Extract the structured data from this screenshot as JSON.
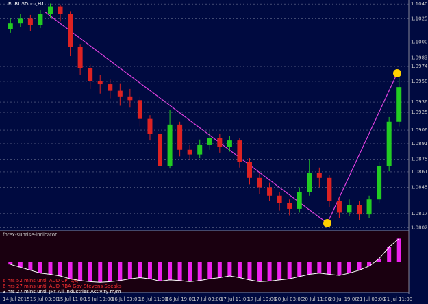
{
  "chart_data": {
    "type": "candlestick",
    "title": "EURUSDpro,H1",
    "open": [
      1.1014,
      1.102,
      1.1025,
      1.1018,
      1.103,
      1.1038,
      1.103,
      1.0995,
      1.0972,
      1.0958,
      1.0955,
      1.0948,
      1.0942,
      1.0938,
      1.0918,
      1.0902,
      1.0868,
      1.0912,
      1.0885,
      1.088,
      1.089,
      1.0898,
      1.0888,
      1.0895,
      1.0872,
      1.0855,
      1.0845,
      1.0836,
      1.0828,
      1.0822,
      1.084,
      1.086,
      1.0855,
      1.083,
      1.0818,
      1.0826,
      1.0816,
      1.0832,
      1.0868,
      1.0915
    ],
    "high": [
      1.1025,
      1.103,
      1.1029,
      1.1034,
      1.1041,
      1.104,
      1.1033,
      1.0998,
      1.0976,
      1.0965,
      1.096,
      1.0956,
      1.095,
      1.0942,
      1.0922,
      1.0905,
      1.0928,
      1.0915,
      1.089,
      1.0896,
      1.0905,
      1.0902,
      1.09,
      1.0898,
      1.0876,
      1.086,
      1.085,
      1.084,
      1.0832,
      1.0845,
      1.0875,
      1.0866,
      1.0858,
      1.0834,
      1.0832,
      1.083,
      1.0836,
      1.0872,
      1.092,
      1.0962
    ],
    "low": [
      1.101,
      1.1016,
      1.1012,
      1.1015,
      1.1026,
      1.1022,
      1.0985,
      1.0965,
      1.095,
      1.0945,
      1.094,
      1.0932,
      1.093,
      1.091,
      1.0895,
      1.0862,
      1.0865,
      1.0878,
      1.0874,
      1.0876,
      1.0885,
      1.0882,
      1.0883,
      1.0866,
      1.0848,
      1.0838,
      1.083,
      1.082,
      1.0815,
      1.0818,
      1.0836,
      1.0845,
      1.0824,
      1.0812,
      1.0814,
      1.081,
      1.0812,
      1.0828,
      1.0862,
      1.091
    ],
    "close": [
      1.102,
      1.1025,
      1.1018,
      1.103,
      1.1038,
      1.103,
      1.0995,
      1.0972,
      1.0958,
      1.0955,
      1.0948,
      1.0942,
      1.0938,
      1.0918,
      1.0902,
      1.0868,
      1.0912,
      1.0885,
      1.088,
      1.089,
      1.0898,
      1.0888,
      1.0895,
      1.0872,
      1.0855,
      1.0845,
      1.0836,
      1.0828,
      1.0822,
      1.084,
      1.086,
      1.0855,
      1.083,
      1.0818,
      1.0826,
      1.0816,
      1.0832,
      1.0868,
      1.0915,
      1.0952
    ],
    "ylim": [
      1.08,
      1.1045
    ],
    "yticks": [
      1.10405,
      {
        "value": 1.1025,
        "label": "1.10250"
      },
      {
        "value": 1.1,
        "label": "1.10000"
      },
      1.09832,
      {
        "value": 1.0974,
        "label": "1.09740"
      },
      {
        "value": 1.0958,
        "label": "1.09580"
      },
      {
        "value": 1.0936,
        "label": "1.09360"
      },
      {
        "value": 1.0925,
        "label": "1.09250"
      },
      {
        "value": 1.0906,
        "label": "1.09060"
      },
      1.08915,
      {
        "value": 1.0875,
        "label": "1.08750"
      },
      1.08615,
      {
        "value": 1.0845,
        "label": "1.08450"
      },
      {
        "value": 1.0817,
        "label": "1.08170"
      },
      {
        "value": 1.0802,
        "label": "1.08020"
      }
    ],
    "xticks": [
      "14 Jul 2015",
      "15 Jul 03:00",
      "15 Jul 11:00",
      "15 Jul 19:00",
      "16 Jul 03:00",
      "16 Jul 11:00",
      "16 Jul 19:00",
      "17 Jul 03:00",
      "17 Jul 11:00",
      "17 Jul 19:00",
      "20 Jul 03:00",
      "20 Jul 11:00",
      "20 Jul 19:00",
      "21 Jul 03:00",
      "21 Jul 11:00"
    ],
    "up_color": "#22cc22",
    "down_color": "#dd2222",
    "grid": true,
    "indicator": {
      "name": "forex-sunrise-indicator",
      "color": "#ee22ee",
      "ylim": [
        -0.005,
        0.005
      ],
      "values": [
        -0.0005,
        -0.001,
        -0.0015,
        -0.002,
        -0.0022,
        -0.0025,
        -0.003,
        -0.0033,
        -0.0035,
        -0.0036,
        -0.0035,
        -0.0033,
        -0.003,
        -0.0028,
        -0.003,
        -0.0034,
        -0.0032,
        -0.0033,
        -0.0035,
        -0.0033,
        -0.003,
        -0.0028,
        -0.0025,
        -0.0028,
        -0.0032,
        -0.0035,
        -0.0034,
        -0.0032,
        -0.003,
        -0.0026,
        -0.0022,
        -0.002,
        -0.0022,
        -0.0024,
        -0.002,
        -0.0015,
        -0.0008,
        0.0005,
        0.0025,
        0.004
      ]
    },
    "notes": [
      "6 hrs 52 mins until AUD CPI q/q",
      "6 hrs 27 mins until AUD RBA Gov Stevens Speaks",
      "3 hrs 27 mins until JPY All Industries Activity m/m"
    ]
  }
}
